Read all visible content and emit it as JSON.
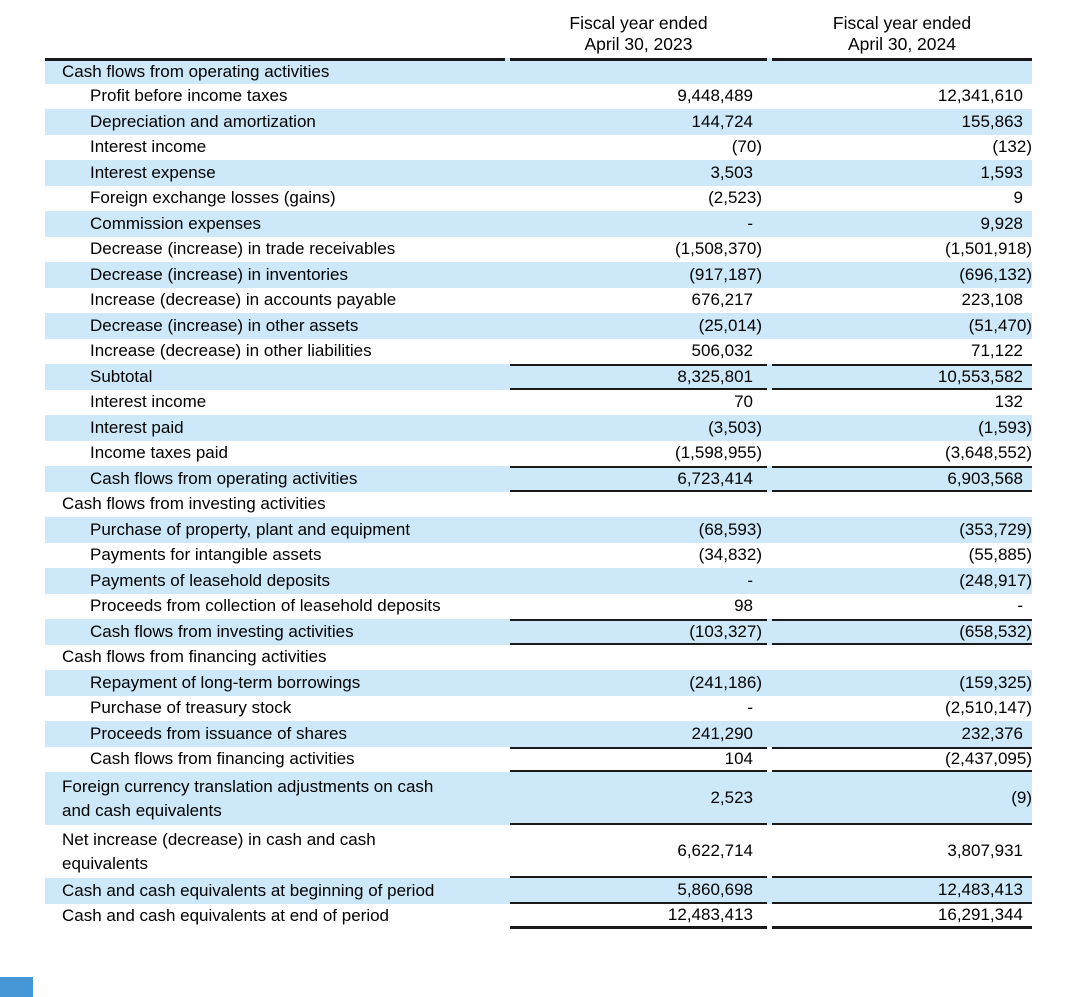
{
  "colors": {
    "row_highlight": "#cde9f9",
    "rule": "#1a1a1a",
    "corner_box": "#4596d6"
  },
  "table": {
    "column_headers": [
      "Fiscal year ended\nApril 30, 2023",
      "Fiscal year ended\nApril 30, 2024"
    ],
    "rows": [
      {
        "label": "Cash flows from operating activities",
        "fy2023": "",
        "fy2024": "",
        "indent": 1,
        "shaded": true
      },
      {
        "label": "Profit before income taxes",
        "fy2023": "9,448,489",
        "fy2024": "12,341,610",
        "indent": 2,
        "shaded": false
      },
      {
        "label": "Depreciation and amortization",
        "fy2023": "144,724",
        "fy2024": "155,863",
        "indent": 2,
        "shaded": true
      },
      {
        "label": "Interest income",
        "fy2023": "(70)",
        "fy2024": "(132)",
        "indent": 2,
        "shaded": false
      },
      {
        "label": "Interest expense",
        "fy2023": "3,503",
        "fy2024": "1,593",
        "indent": 2,
        "shaded": true
      },
      {
        "label": "Foreign exchange losses (gains)",
        "fy2023": "(2,523)",
        "fy2024": "9",
        "indent": 2,
        "shaded": false
      },
      {
        "label": "Commission expenses",
        "fy2023": "-",
        "fy2024": "9,928",
        "indent": 2,
        "shaded": true
      },
      {
        "label": "Decrease (increase) in trade receivables",
        "fy2023": "(1,508,370)",
        "fy2024": "(1,501,918)",
        "indent": 2,
        "shaded": false
      },
      {
        "label": "Decrease (increase) in inventories",
        "fy2023": "(917,187)",
        "fy2024": "(696,132)",
        "indent": 2,
        "shaded": true
      },
      {
        "label": "Increase (decrease) in accounts payable",
        "fy2023": "676,217",
        "fy2024": "223,108",
        "indent": 2,
        "shaded": false
      },
      {
        "label": "Decrease (increase) in other assets",
        "fy2023": "(25,014)",
        "fy2024": "(51,470)",
        "indent": 2,
        "shaded": true
      },
      {
        "label": "Increase (decrease) in other liabilities",
        "fy2023": "506,032",
        "fy2024": "71,122",
        "indent": 2,
        "shaded": false
      },
      {
        "label": "Subtotal",
        "fy2023": "8,325,801",
        "fy2024": "10,553,582",
        "indent": 2,
        "shaded": true,
        "border_top": true,
        "border_bottom": true
      },
      {
        "label": "Interest income",
        "fy2023": "70",
        "fy2024": "132",
        "indent": 2,
        "shaded": false
      },
      {
        "label": "Interest paid",
        "fy2023": "(3,503)",
        "fy2024": "(1,593)",
        "indent": 2,
        "shaded": true
      },
      {
        "label": "Income taxes paid",
        "fy2023": "(1,598,955)",
        "fy2024": "(3,648,552)",
        "indent": 2,
        "shaded": false
      },
      {
        "label": "Cash flows from operating activities",
        "fy2023": "6,723,414",
        "fy2024": "6,903,568",
        "indent": 2,
        "shaded": true,
        "border_top": true,
        "border_bottom": true
      },
      {
        "label": "Cash flows from investing activities",
        "fy2023": "",
        "fy2024": "",
        "indent": 1,
        "shaded": false
      },
      {
        "label": "Purchase of property, plant and equipment",
        "fy2023": "(68,593)",
        "fy2024": "(353,729)",
        "indent": 2,
        "shaded": true
      },
      {
        "label": "Payments for intangible assets",
        "fy2023": "(34,832)",
        "fy2024": "(55,885)",
        "indent": 2,
        "shaded": false
      },
      {
        "label": "Payments of leasehold deposits",
        "fy2023": "-",
        "fy2024": "(248,917)",
        "indent": 2,
        "shaded": true
      },
      {
        "label": "Proceeds from collection of leasehold deposits",
        "fy2023": "98",
        "fy2024": "-",
        "indent": 2,
        "shaded": false
      },
      {
        "label": "Cash flows from investing activities",
        "fy2023": "(103,327)",
        "fy2024": "(658,532)",
        "indent": 2,
        "shaded": true,
        "border_top": true,
        "border_bottom": true
      },
      {
        "label": "Cash flows from financing activities",
        "fy2023": "",
        "fy2024": "",
        "indent": 1,
        "shaded": false
      },
      {
        "label": "Repayment of long-term borrowings",
        "fy2023": "(241,186)",
        "fy2024": "(159,325)",
        "indent": 2,
        "shaded": true
      },
      {
        "label": "Purchase of treasury stock",
        "fy2023": "-",
        "fy2024": "(2,510,147)",
        "indent": 2,
        "shaded": false
      },
      {
        "label": "Proceeds from issuance of shares",
        "fy2023": "241,290",
        "fy2024": "232,376",
        "indent": 2,
        "shaded": true
      },
      {
        "label": "Cash flows from financing activities",
        "fy2023": "104",
        "fy2024": "(2,437,095)",
        "indent": 2,
        "shaded": false,
        "border_top": true,
        "border_bottom": true
      },
      {
        "label": "Foreign currency translation adjustments on cash\nand cash equivalents",
        "fy2023": "2,523",
        "fy2024": "(9)",
        "indent": 1,
        "shaded": true,
        "border_bottom": true,
        "tall": true
      },
      {
        "label": "Net increase (decrease) in cash and cash\nequivalents",
        "fy2023": "6,622,714",
        "fy2024": "3,807,931",
        "indent": 1,
        "shaded": false,
        "border_bottom": true,
        "tall": true
      },
      {
        "label": "Cash and cash equivalents at beginning of period",
        "fy2023": "5,860,698",
        "fy2024": "12,483,413",
        "indent": 1,
        "shaded": true,
        "border_bottom": true
      },
      {
        "label": "Cash and cash equivalents at end of period",
        "fy2023": "12,483,413",
        "fy2024": "16,291,344",
        "indent": 1,
        "shaded": false,
        "border_bottom": true,
        "final": true
      }
    ]
  }
}
